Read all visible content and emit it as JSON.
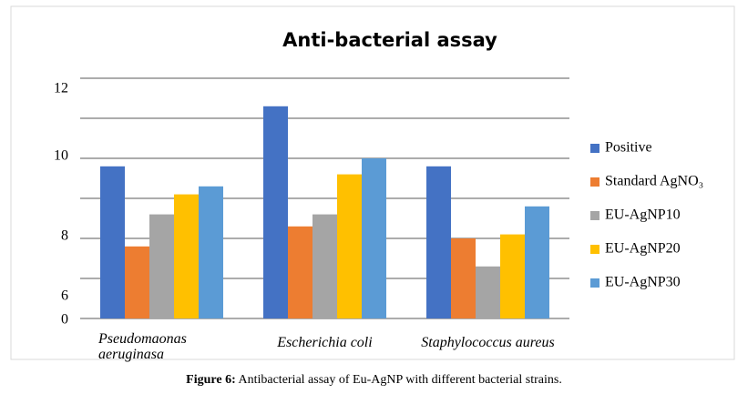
{
  "chart_data": {
    "type": "bar",
    "title": "Anti-bacterial assay",
    "categories": [
      "Pseudomaonas aeruginasa",
      "Escherichia coli",
      "Staphylococcus aureus"
    ],
    "series": [
      {
        "name": "Positive",
        "color": "#4472c4",
        "values": [
          9.8,
          11.3,
          9.8
        ]
      },
      {
        "name": "Standard AgNO₃",
        "color": "#ed7d31",
        "values": [
          7.8,
          8.3,
          8.0
        ]
      },
      {
        "name": "EU-AgNP10",
        "color": "#a5a5a5",
        "values": [
          8.6,
          8.6,
          7.3
        ]
      },
      {
        "name": "EU-AgNP20",
        "color": "#ffc000",
        "values": [
          9.1,
          9.6,
          8.1
        ]
      },
      {
        "name": "EU-AgNP30",
        "color": "#5b9bd5",
        "values": [
          9.3,
          10.0,
          8.8
        ]
      }
    ],
    "ylim": [
      6,
      12
    ],
    "yticks": [
      6,
      8,
      10,
      12
    ],
    "minor_yticks": [
      7,
      9,
      11
    ],
    "origin_label": "0",
    "grid": true,
    "legend": "right"
  },
  "caption": {
    "label": "Figure 6:",
    "text": "Antibacterial assay of Eu-AgNP with different bacterial strains."
  }
}
